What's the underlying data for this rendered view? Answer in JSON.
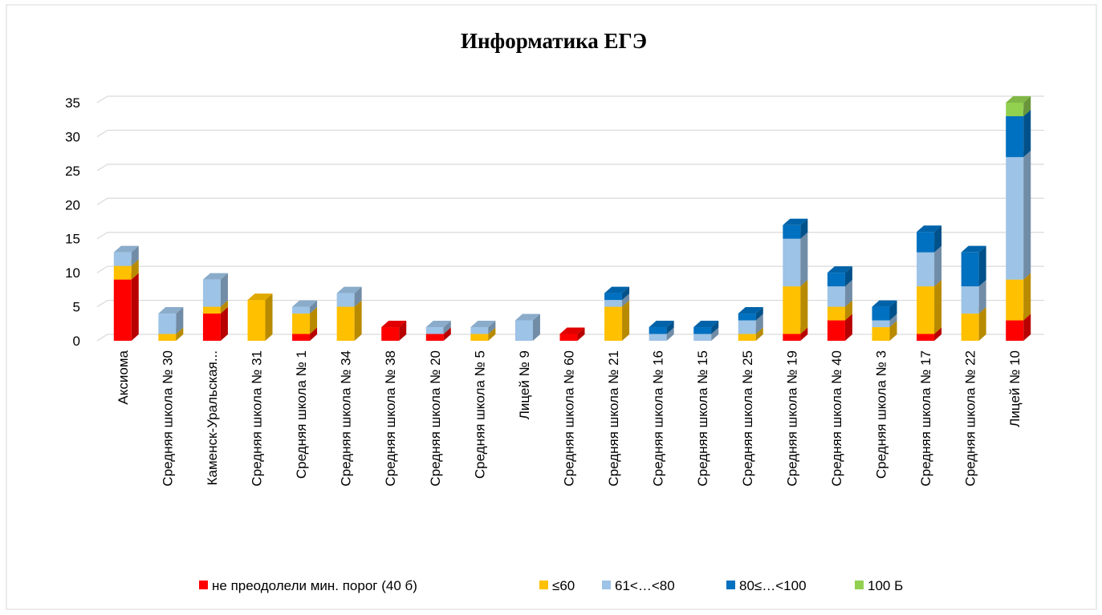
{
  "chart_data": {
    "type": "bar",
    "stacked": true,
    "title": "Информатика  ЕГЭ",
    "categories": [
      "Аксиома",
      "Средняя школа № 30",
      "Каменск-Уральская...",
      "Средняя школа № 31",
      "Средняя школа № 1",
      "Средняя школа № 34",
      "Средняя школа № 38",
      "Средняя школа № 20",
      "Средняя школа № 5",
      "Лицей № 9",
      "Средняя школа № 60",
      "Средняя школа № 21",
      "Средняя школа № 16",
      "Средняя школа № 15",
      "Средняя школа № 25",
      "Средняя школа № 19",
      "Средняя школа № 40",
      "Средняя школа № 3",
      "Средняя школа № 17",
      "Средняя школа № 22",
      "Лицей № 10"
    ],
    "series": [
      {
        "name": "не преодолели мин. порог (40 б)",
        "color": "#ff0000",
        "values": [
          9,
          0,
          4,
          0,
          1,
          0,
          2,
          1,
          0,
          0,
          1,
          0,
          0,
          0,
          0,
          1,
          3,
          0,
          1,
          0,
          3
        ]
      },
      {
        "name": "≤60",
        "color": "#ffc000",
        "values": [
          2,
          1,
          1,
          6,
          3,
          5,
          0,
          0,
          1,
          0,
          0,
          5,
          0,
          0,
          1,
          7,
          2,
          2,
          7,
          4,
          6
        ]
      },
      {
        "name": "61<…<80",
        "color": "#9dc3e6",
        "values": [
          2,
          3,
          4,
          0,
          1,
          2,
          0,
          1,
          1,
          3,
          0,
          1,
          1,
          1,
          2,
          7,
          3,
          1,
          5,
          4,
          18
        ]
      },
      {
        "name": "80≤…<100",
        "color": "#0070c0",
        "values": [
          0,
          0,
          0,
          0,
          0,
          0,
          0,
          0,
          0,
          0,
          0,
          1,
          1,
          1,
          1,
          2,
          2,
          2,
          3,
          5,
          6
        ]
      },
      {
        "name": "100 Б",
        "color": "#92d050",
        "values": [
          0,
          0,
          0,
          0,
          0,
          0,
          0,
          0,
          0,
          0,
          0,
          0,
          0,
          0,
          0,
          0,
          0,
          0,
          0,
          0,
          2
        ]
      }
    ],
    "ylim": [
      0,
      35
    ],
    "yticks": [
      0,
      5,
      10,
      15,
      20,
      25,
      30,
      35
    ],
    "grid": true,
    "legend": "bottom"
  }
}
